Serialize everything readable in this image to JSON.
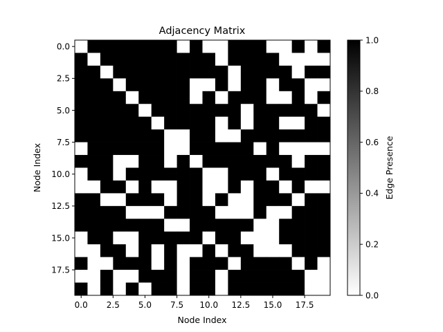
{
  "chart_data": {
    "type": "heatmap",
    "title": "Adjacency Matrix",
    "xlabel": "Node Index",
    "ylabel": "Node Index",
    "x_ticks": [
      "0.0",
      "2.5",
      "5.0",
      "7.5",
      "10.0",
      "12.5",
      "15.0",
      "17.5"
    ],
    "y_ticks": [
      "0.0",
      "2.5",
      "5.0",
      "7.5",
      "10.0",
      "12.5",
      "15.0",
      "17.5"
    ],
    "x_tick_values": [
      0,
      2.5,
      5,
      7.5,
      10,
      12.5,
      15,
      17.5
    ],
    "y_tick_values": [
      0,
      2.5,
      5,
      7.5,
      10,
      12.5,
      15,
      17.5
    ],
    "colorbar": {
      "label": "Edge Presence",
      "ticks": [
        "0.0",
        "0.2",
        "0.4",
        "0.6",
        "0.8",
        "1.0"
      ],
      "tick_values": [
        0,
        0.2,
        0.4,
        0.6,
        0.8,
        1.0
      ],
      "range": [
        0,
        1
      ],
      "colormap": "gray_r"
    },
    "matrix": [
      [
        0,
        1,
        1,
        1,
        1,
        1,
        1,
        1,
        0,
        1,
        0,
        0,
        1,
        1,
        1,
        0,
        0,
        1,
        0,
        1
      ],
      [
        1,
        0,
        1,
        1,
        1,
        1,
        1,
        1,
        1,
        1,
        1,
        0,
        1,
        1,
        1,
        1,
        0,
        0,
        0,
        0
      ],
      [
        1,
        1,
        0,
        1,
        1,
        1,
        1,
        1,
        1,
        1,
        1,
        1,
        0,
        1,
        1,
        1,
        1,
        0,
        1,
        1
      ],
      [
        1,
        1,
        1,
        0,
        1,
        1,
        1,
        1,
        1,
        0,
        0,
        1,
        0,
        1,
        1,
        0,
        1,
        1,
        0,
        0
      ],
      [
        1,
        1,
        1,
        1,
        0,
        1,
        1,
        1,
        1,
        0,
        1,
        0,
        1,
        1,
        1,
        0,
        0,
        1,
        0,
        1
      ],
      [
        1,
        1,
        1,
        1,
        1,
        0,
        1,
        1,
        1,
        1,
        1,
        1,
        1,
        0,
        1,
        1,
        1,
        1,
        1,
        0
      ],
      [
        1,
        1,
        1,
        1,
        1,
        1,
        0,
        1,
        1,
        1,
        1,
        0,
        1,
        0,
        1,
        1,
        0,
        0,
        1,
        1
      ],
      [
        1,
        1,
        1,
        1,
        1,
        1,
        1,
        0,
        0,
        1,
        1,
        0,
        0,
        1,
        1,
        1,
        1,
        1,
        1,
        1
      ],
      [
        0,
        1,
        1,
        1,
        1,
        1,
        1,
        0,
        0,
        1,
        1,
        1,
        1,
        1,
        0,
        1,
        0,
        0,
        0,
        0
      ],
      [
        1,
        1,
        1,
        0,
        0,
        1,
        1,
        0,
        1,
        0,
        1,
        1,
        1,
        1,
        1,
        1,
        1,
        0,
        1,
        1
      ],
      [
        0,
        1,
        1,
        0,
        1,
        1,
        1,
        1,
        1,
        1,
        0,
        0,
        1,
        1,
        1,
        0,
        1,
        1,
        1,
        1
      ],
      [
        0,
        0,
        1,
        1,
        0,
        1,
        0,
        0,
        1,
        1,
        0,
        0,
        1,
        0,
        1,
        1,
        0,
        1,
        0,
        0
      ],
      [
        1,
        1,
        0,
        0,
        1,
        1,
        1,
        0,
        1,
        1,
        0,
        1,
        0,
        0,
        1,
        1,
        1,
        0,
        1,
        1
      ],
      [
        1,
        1,
        1,
        1,
        0,
        0,
        0,
        1,
        1,
        1,
        1,
        0,
        0,
        0,
        1,
        0,
        0,
        1,
        1,
        1
      ],
      [
        1,
        1,
        1,
        1,
        1,
        1,
        1,
        0,
        0,
        1,
        1,
        1,
        1,
        1,
        0,
        0,
        1,
        1,
        1,
        1
      ],
      [
        0,
        1,
        1,
        0,
        0,
        1,
        1,
        1,
        1,
        1,
        0,
        1,
        1,
        0,
        0,
        0,
        1,
        1,
        1,
        1
      ],
      [
        0,
        0,
        1,
        1,
        0,
        1,
        0,
        1,
        0,
        0,
        1,
        0,
        1,
        1,
        0,
        0,
        0,
        1,
        1,
        1
      ],
      [
        1,
        0,
        0,
        1,
        1,
        1,
        0,
        1,
        0,
        1,
        1,
        1,
        0,
        1,
        1,
        1,
        1,
        0,
        1,
        0
      ],
      [
        0,
        0,
        1,
        0,
        0,
        1,
        1,
        1,
        0,
        1,
        1,
        0,
        1,
        1,
        1,
        1,
        1,
        1,
        0,
        0
      ],
      [
        1,
        0,
        1,
        0,
        1,
        0,
        1,
        1,
        0,
        1,
        1,
        0,
        1,
        1,
        1,
        1,
        1,
        1,
        0,
        0
      ]
    ]
  }
}
